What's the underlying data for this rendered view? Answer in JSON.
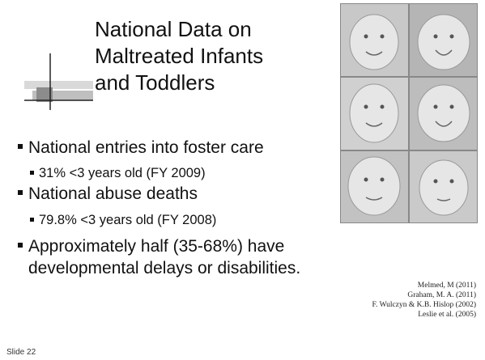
{
  "slide": {
    "title": [
      "National Data on",
      "Maltreated Infants",
      "and Toddlers"
    ],
    "bullets": [
      {
        "text": "National entries into foster care",
        "sub": [
          "31% <3 years old (FY 2009)"
        ]
      },
      {
        "text": "National abuse deaths",
        "sub": [
          "79.8% <3 years old (FY 2008)"
        ]
      },
      {
        "lines": [
          "Approximately half (35-68%) have",
          "developmental delays or disabilities."
        ]
      }
    ],
    "citations": [
      "Melmed, M (2011)",
      "Graham, M. A. (2011)",
      "F. Wulczyn & K.B. Hislop (2002)",
      "Leslie et al. (2005)"
    ],
    "footer": "Slide 22"
  }
}
